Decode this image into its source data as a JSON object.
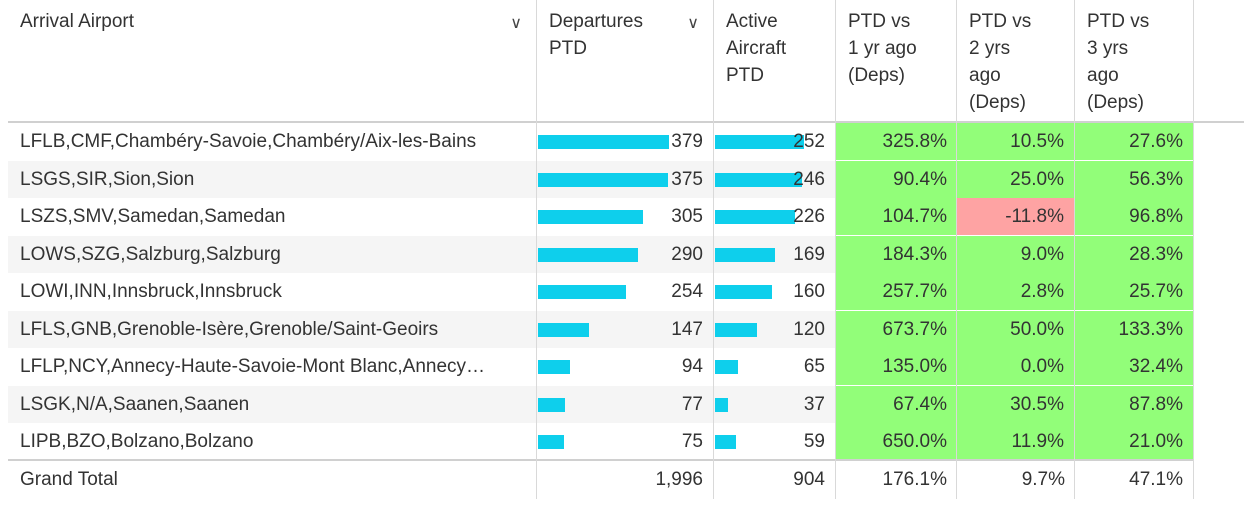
{
  "headers": {
    "arrival": "Arrival Airport",
    "departures": [
      "Departures",
      "PTD"
    ],
    "active": [
      "Active",
      "Aircraft",
      "PTD"
    ],
    "vs1": [
      "PTD vs",
      "1 yr ago",
      "(Deps)"
    ],
    "vs2": [
      "PTD vs",
      "2 yrs",
      "ago",
      "(Deps)"
    ],
    "vs3": [
      "PTD vs",
      "3 yrs",
      "ago",
      "(Deps)"
    ]
  },
  "rows": [
    {
      "airport": "LFLB,CMF,Chambéry-Savoie,Chambéry/Aix-les-Bains",
      "departures": "379",
      "active": "252",
      "vs1": "325.8%",
      "vs2": "10.5%",
      "vs3": "27.6%",
      "dep_frac": 1.0,
      "act_frac": 1.0,
      "vs2_color": "green"
    },
    {
      "airport": "LSGS,SIR,Sion,Sion",
      "departures": "375",
      "active": "246",
      "vs1": "90.4%",
      "vs2": "25.0%",
      "vs3": "56.3%",
      "dep_frac": 0.989,
      "act_frac": 0.976,
      "vs2_color": "green"
    },
    {
      "airport": "LSZS,SMV,Samedan,Samedan",
      "departures": "305",
      "active": "226",
      "vs1": "104.7%",
      "vs2": "-11.8%",
      "vs3": "96.8%",
      "dep_frac": 0.805,
      "act_frac": 0.897,
      "vs2_color": "red"
    },
    {
      "airport": "LOWS,SZG,Salzburg,Salzburg",
      "departures": "290",
      "active": "169",
      "vs1": "184.3%",
      "vs2": "9.0%",
      "vs3": "28.3%",
      "dep_frac": 0.765,
      "act_frac": 0.671,
      "vs2_color": "green"
    },
    {
      "airport": "LOWI,INN,Innsbruck,Innsbruck",
      "departures": "254",
      "active": "160",
      "vs1": "257.7%",
      "vs2": "2.8%",
      "vs3": "25.7%",
      "dep_frac": 0.67,
      "act_frac": 0.635,
      "vs2_color": "green"
    },
    {
      "airport": "LFLS,GNB,Grenoble-Isère,Grenoble/Saint-Geoirs",
      "departures": "147",
      "active": "120",
      "vs1": "673.7%",
      "vs2": "50.0%",
      "vs3": "133.3%",
      "dep_frac": 0.388,
      "act_frac": 0.476,
      "vs2_color": "green"
    },
    {
      "airport": "LFLP,NCY,Annecy-Haute-Savoie-Mont Blanc,Annecy…",
      "departures": "94",
      "active": "65",
      "vs1": "135.0%",
      "vs2": "0.0%",
      "vs3": "32.4%",
      "dep_frac": 0.248,
      "act_frac": 0.258,
      "vs2_color": "green"
    },
    {
      "airport": "LSGK,N/A,Saanen,Saanen",
      "departures": "77",
      "active": "37",
      "vs1": "67.4%",
      "vs2": "30.5%",
      "vs3": "87.8%",
      "dep_frac": 0.203,
      "act_frac": 0.147,
      "vs2_color": "green"
    },
    {
      "airport": "LIPB,BZO,Bolzano,Bolzano",
      "departures": "75",
      "active": "59",
      "vs1": "650.0%",
      "vs2": "11.9%",
      "vs3": "21.0%",
      "dep_frac": 0.198,
      "act_frac": 0.234,
      "vs2_color": "green"
    }
  ],
  "total": {
    "label": "Grand Total",
    "departures": "1,996",
    "active": "904",
    "vs1": "176.1%",
    "vs2": "9.7%",
    "vs3": "47.1%"
  },
  "colors": {
    "bar": "#0ecfec",
    "green": "#92fe79",
    "red": "#fea3a3"
  },
  "icons": {
    "sort_arrival": "chevron-down-icon",
    "sort_departures": "chevron-down-icon"
  }
}
